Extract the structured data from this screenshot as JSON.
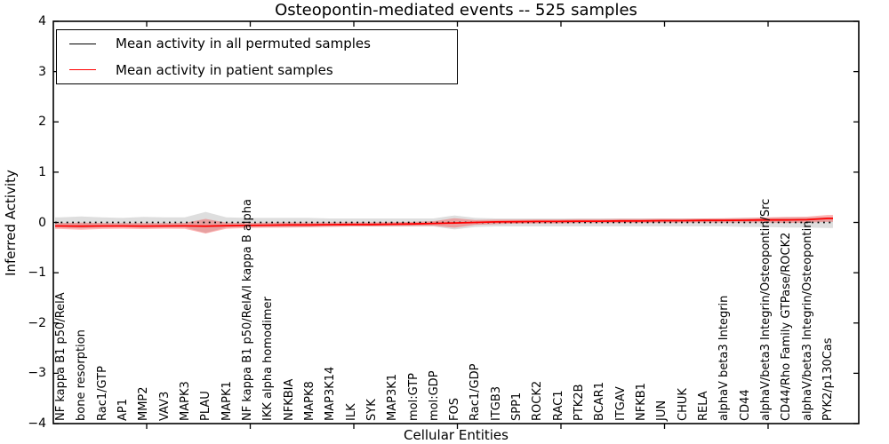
{
  "chart_data": {
    "type": "line",
    "title": "Osteopontin-mediated events -- 525 samples",
    "xlabel": "Cellular Entities",
    "ylabel": "Inferred Activity",
    "ylim": [
      -4,
      4
    ],
    "ytick_labels": [
      "4",
      "3",
      "2",
      "1",
      "0",
      "−1",
      "−2",
      "−3",
      "−4"
    ],
    "ytick_values": [
      4,
      3,
      2,
      1,
      0,
      -1,
      -2,
      -3,
      -4
    ],
    "grid": false,
    "legend_position": "upper left",
    "legend": [
      {
        "label": "Mean activity in all permuted samples",
        "color": "#000000"
      },
      {
        "label": "Mean activity in patient samples",
        "color": "#ff0000"
      }
    ],
    "categories": [
      "NF kappa B1 p50/RelA",
      "bone resorption",
      "Rac1/GTP",
      "AP1",
      "MMP2",
      "VAV3",
      "MAPK3",
      "PLAU",
      "MAPK1",
      "NF kappa B1 p50/RelA/I kappa B alpha",
      "IKK alpha homodimer",
      "NFKBIA",
      "MAPK8",
      "MAP3K14",
      "ILK",
      "SYK",
      "MAP3K1",
      "mol:GTP",
      "mol:GDP",
      "FOS",
      "Rac1/GDP",
      "ITGB3",
      "SPP1",
      "ROCK2",
      "RAC1",
      "PTK2B",
      "BCAR1",
      "ITGAV",
      "NFKB1",
      "JUN",
      "CHUK",
      "RELA",
      "alphaV beta3 Integrin",
      "CD44",
      "alphaV/beta3 Integrin/Osteopontin/Src",
      "CD44/Rho Family GTPase/ROCK2",
      "alphaV/beta3 Integrin/Osteopontin",
      "PYK2/p130Cas"
    ],
    "series": [
      {
        "name": "Mean activity in all permuted samples",
        "color": "#000000",
        "style": "dotted",
        "band_color": "#000000",
        "band_opacity": 0.13,
        "values": [
          0,
          0,
          0,
          0,
          0,
          0,
          0,
          0,
          0,
          0,
          0,
          0,
          0,
          0,
          0,
          0,
          0,
          0,
          0,
          0,
          0,
          0,
          0,
          0,
          0,
          0,
          0,
          0,
          0,
          0,
          0,
          0,
          0,
          0,
          0,
          0,
          0,
          0
        ],
        "band": [
          0.1,
          0.12,
          0.1,
          0.09,
          0.11,
          0.1,
          0.1,
          0.21,
          0.1,
          0.09,
          0.09,
          0.09,
          0.09,
          0.08,
          0.08,
          0.08,
          0.08,
          0.08,
          0.08,
          0.14,
          0.09,
          0.08,
          0.08,
          0.08,
          0.08,
          0.08,
          0.08,
          0.08,
          0.08,
          0.08,
          0.08,
          0.08,
          0.08,
          0.09,
          0.09,
          0.1,
          0.1,
          0.11
        ]
      },
      {
        "name": "Mean activity in patient samples",
        "color": "#ff0000",
        "style": "solid",
        "band_color": "#ff0000",
        "band_opacity": 0.28,
        "values": [
          -0.07,
          -0.075,
          -0.07,
          -0.07,
          -0.072,
          -0.07,
          -0.068,
          -0.075,
          -0.065,
          -0.06,
          -0.055,
          -0.05,
          -0.05,
          -0.045,
          -0.04,
          -0.04,
          -0.035,
          -0.03,
          -0.02,
          -0.01,
          0.0,
          0.01,
          0.015,
          0.02,
          0.02,
          0.025,
          0.025,
          0.03,
          0.03,
          0.035,
          0.035,
          0.04,
          0.04,
          0.045,
          0.05,
          0.05,
          0.055,
          0.08
        ],
        "band": [
          0.06,
          0.07,
          0.06,
          0.055,
          0.06,
          0.055,
          0.06,
          0.145,
          0.06,
          0.05,
          0.05,
          0.05,
          0.045,
          0.045,
          0.04,
          0.04,
          0.04,
          0.04,
          0.045,
          0.095,
          0.05,
          0.045,
          0.04,
          0.04,
          0.04,
          0.04,
          0.04,
          0.04,
          0.04,
          0.04,
          0.04,
          0.04,
          0.045,
          0.045,
          0.05,
          0.06,
          0.06,
          0.07
        ]
      }
    ]
  }
}
